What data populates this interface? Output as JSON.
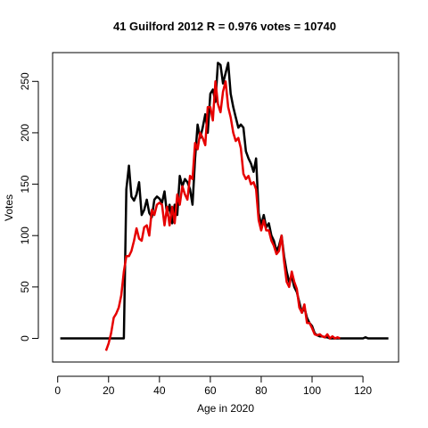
{
  "chart_data": {
    "type": "line",
    "title": "41 Guilford 2012 R = 0.976 votes = 10740",
    "xlabel": "Age in 2020",
    "ylabel": "Votes",
    "xlim": [
      -2,
      134
    ],
    "ylim": [
      -23,
      278
    ],
    "xticks": [
      0,
      20,
      40,
      60,
      80,
      100,
      120
    ],
    "yticks": [
      0,
      50,
      100,
      150,
      200,
      250
    ],
    "grid": false,
    "legend": "none",
    "series": [
      {
        "color": "#000000",
        "x": [
          1,
          26,
          27,
          28,
          29,
          30,
          31,
          32,
          33,
          34,
          35,
          36,
          37,
          38,
          39,
          40,
          41,
          42,
          43,
          44,
          45,
          46,
          47,
          48,
          49,
          50,
          51,
          52,
          53,
          54,
          55,
          56,
          57,
          58,
          59,
          60,
          61,
          62,
          63,
          64,
          65,
          66,
          67,
          68,
          69,
          70,
          71,
          72,
          73,
          74,
          75,
          76,
          77,
          78,
          79,
          80,
          81,
          82,
          83,
          84,
          85,
          86,
          87,
          88,
          89,
          90,
          91,
          92,
          93,
          94,
          95,
          96,
          97,
          98,
          99,
          100,
          101,
          102,
          103,
          104,
          105,
          106,
          107,
          108,
          109,
          110,
          111,
          112,
          113,
          114,
          115,
          116,
          117,
          118,
          119,
          120,
          121,
          122,
          123,
          124,
          125,
          126,
          127,
          128,
          129,
          130
        ],
        "y": [
          0,
          0,
          145,
          168,
          138,
          134,
          140,
          152,
          120,
          125,
          135,
          122,
          118,
          135,
          138,
          136,
          132,
          143,
          120,
          130,
          112,
          130,
          120,
          158,
          148,
          155,
          152,
          145,
          130,
          175,
          208,
          195,
          205,
          218,
          200,
          238,
          242,
          230,
          268,
          266,
          248,
          258,
          268,
          238,
          225,
          215,
          205,
          208,
          205,
          182,
          175,
          170,
          162,
          175,
          122,
          110,
          120,
          108,
          112,
          100,
          95,
          85,
          90,
          100,
          80,
          65,
          55,
          60,
          50,
          45,
          35,
          25,
          30,
          20,
          15,
          12,
          5,
          3,
          2,
          2,
          1,
          1,
          0,
          0,
          0,
          0,
          0,
          0,
          0,
          0,
          0,
          0,
          0,
          0,
          0,
          0,
          1,
          0,
          0,
          0,
          0,
          0,
          0,
          0,
          0,
          0
        ]
      },
      {
        "color": "#e60000",
        "x": [
          19,
          20,
          21,
          22,
          23,
          24,
          25,
          26,
          27,
          28,
          29,
          30,
          31,
          32,
          33,
          34,
          35,
          36,
          37,
          38,
          39,
          40,
          41,
          42,
          43,
          44,
          45,
          46,
          47,
          48,
          49,
          50,
          51,
          52,
          53,
          54,
          55,
          56,
          57,
          58,
          59,
          60,
          61,
          62,
          63,
          64,
          65,
          66,
          67,
          68,
          69,
          70,
          71,
          72,
          73,
          74,
          75,
          76,
          77,
          78,
          79,
          80,
          81,
          82,
          83,
          84,
          85,
          86,
          87,
          88,
          89,
          90,
          91,
          92,
          93,
          94,
          95,
          96,
          97,
          98,
          99,
          100,
          101,
          102,
          103,
          104,
          105,
          106,
          107,
          108,
          109,
          110,
          111
        ],
        "y": [
          -12,
          -5,
          5,
          20,
          24,
          30,
          42,
          65,
          80,
          80,
          85,
          95,
          107,
          97,
          95,
          108,
          110,
          100,
          125,
          120,
          130,
          132,
          130,
          110,
          128,
          110,
          128,
          112,
          140,
          130,
          148,
          140,
          135,
          158,
          155,
          190,
          184,
          200,
          195,
          188,
          225,
          225,
          212,
          250,
          228,
          220,
          240,
          250,
          225,
          215,
          200,
          192,
          195,
          185,
          160,
          155,
          158,
          150,
          152,
          145,
          115,
          105,
          115,
          105,
          105,
          95,
          90,
          82,
          85,
          100,
          75,
          55,
          50,
          65,
          55,
          48,
          30,
          25,
          33,
          15,
          15,
          10,
          4,
          3,
          4,
          2,
          1,
          4,
          0,
          2,
          0,
          1,
          0
        ]
      }
    ]
  }
}
